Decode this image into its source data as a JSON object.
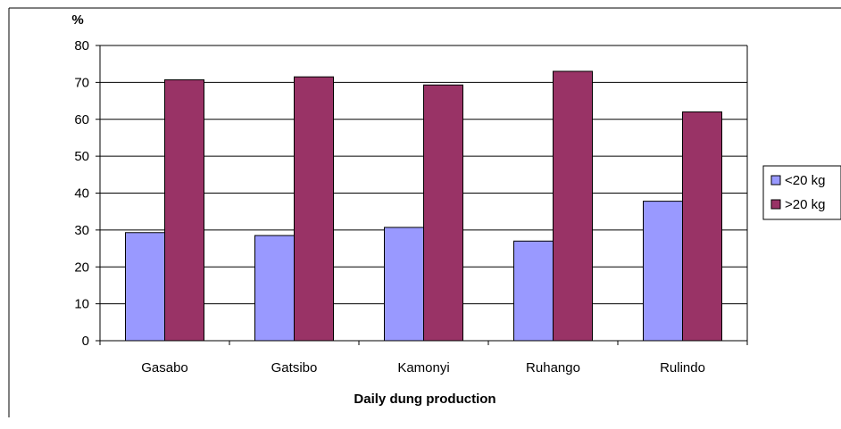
{
  "chart_data": {
    "type": "bar",
    "categories": [
      "Gasabo",
      "Gatsibo",
      "Kamonyi",
      "Ruhango",
      "Rulindo"
    ],
    "series": [
      {
        "name": "<20 kg",
        "values": [
          29.3,
          28.5,
          30.7,
          27.0,
          37.8
        ],
        "color": "#9999ff"
      },
      {
        "name": ">20 kg",
        "values": [
          70.7,
          71.5,
          69.3,
          73.0,
          62.0
        ],
        "color": "#993366"
      }
    ],
    "title": "",
    "xlabel": "Daily dung production",
    "ylabel": "%",
    "ylim": [
      0,
      80
    ],
    "yticks": [
      0,
      10,
      20,
      30,
      40,
      50,
      60,
      70,
      80
    ],
    "grid": true,
    "legend": "right"
  }
}
